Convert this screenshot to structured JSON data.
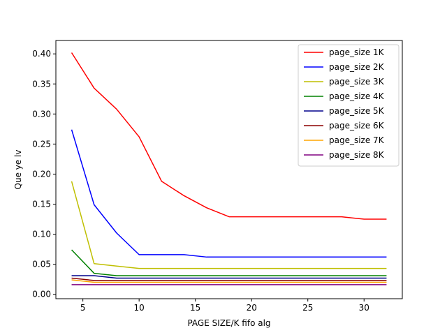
{
  "chart_data": {
    "type": "line",
    "title": "",
    "xlabel": "PAGE SIZE/K fifo alg",
    "ylabel": "Que ye lv",
    "xlim": [
      2.6,
      33.4
    ],
    "ylim": [
      -0.0073,
      0.4223
    ],
    "xticks": [
      5,
      10,
      15,
      20,
      25,
      30
    ],
    "xtick_labels": [
      "5",
      "10",
      "15",
      "20",
      "25",
      "30"
    ],
    "yticks": [
      0.0,
      0.05,
      0.1,
      0.15,
      0.2,
      0.25,
      0.3,
      0.35,
      0.4
    ],
    "ytick_labels": [
      "0.00",
      "0.05",
      "0.10",
      "0.15",
      "0.20",
      "0.25",
      "0.30",
      "0.35",
      "0.40"
    ],
    "grid": false,
    "legend_position": "top-right",
    "x": [
      4,
      6,
      8,
      10,
      12,
      14,
      16,
      18,
      20,
      22,
      24,
      26,
      28,
      30,
      32
    ],
    "series": [
      {
        "name": "page_size 1K",
        "color": "#ff0000",
        "values": [
          0.402,
          0.343,
          0.308,
          0.262,
          0.188,
          0.164,
          0.144,
          0.129,
          0.129,
          0.129,
          0.129,
          0.129,
          0.129,
          0.125,
          0.125
        ]
      },
      {
        "name": "page_size 2K",
        "color": "#0000ff",
        "values": [
          0.274,
          0.149,
          0.102,
          0.066,
          0.066,
          0.066,
          0.062,
          0.062,
          0.062,
          0.062,
          0.062,
          0.062,
          0.062,
          0.062,
          0.062
        ]
      },
      {
        "name": "page_size 3K",
        "color": "#bfbf00",
        "values": [
          0.188,
          0.051,
          0.047,
          0.043,
          0.043,
          0.043,
          0.043,
          0.043,
          0.043,
          0.043,
          0.043,
          0.043,
          0.043,
          0.043,
          0.043
        ]
      },
      {
        "name": "page_size 4K",
        "color": "#008000",
        "values": [
          0.074,
          0.035,
          0.031,
          0.031,
          0.031,
          0.031,
          0.031,
          0.031,
          0.031,
          0.031,
          0.031,
          0.031,
          0.031,
          0.031,
          0.031
        ]
      },
      {
        "name": "page_size 5K",
        "color": "#00008b",
        "values": [
          0.031,
          0.031,
          0.027,
          0.027,
          0.027,
          0.027,
          0.027,
          0.027,
          0.027,
          0.027,
          0.027,
          0.027,
          0.027,
          0.027,
          0.027
        ]
      },
      {
        "name": "page_size 6K",
        "color": "#8b0000",
        "values": [
          0.027,
          0.023,
          0.023,
          0.023,
          0.023,
          0.023,
          0.023,
          0.023,
          0.023,
          0.023,
          0.023,
          0.023,
          0.023,
          0.023,
          0.023
        ]
      },
      {
        "name": "page_size 7K",
        "color": "#ffa500",
        "values": [
          0.024,
          0.02,
          0.02,
          0.02,
          0.02,
          0.02,
          0.02,
          0.02,
          0.02,
          0.02,
          0.02,
          0.02,
          0.02,
          0.02,
          0.02
        ]
      },
      {
        "name": "page_size 8K",
        "color": "#800080",
        "values": [
          0.016,
          0.016,
          0.016,
          0.016,
          0.016,
          0.016,
          0.016,
          0.016,
          0.016,
          0.016,
          0.016,
          0.016,
          0.016,
          0.016,
          0.016
        ]
      }
    ]
  }
}
